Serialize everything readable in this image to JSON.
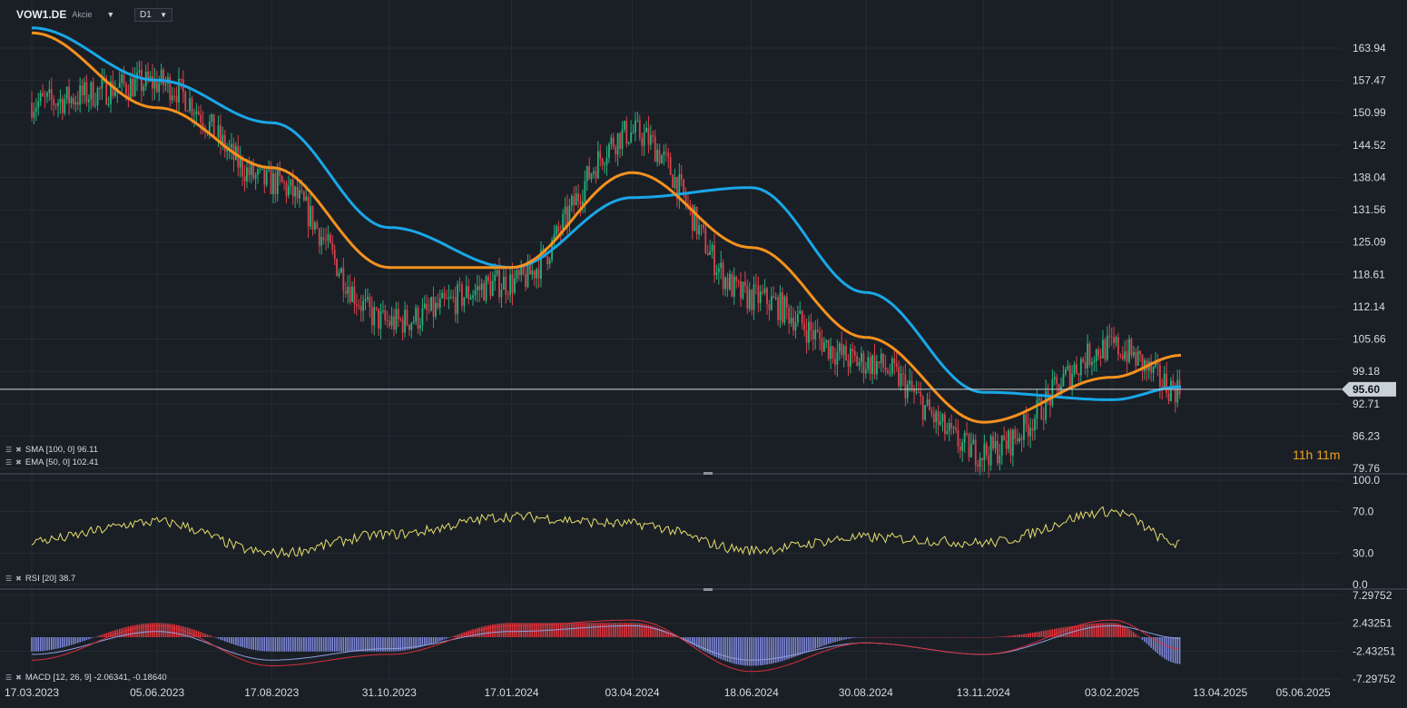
{
  "header": {
    "symbol": "VOW1.DE",
    "asset_type": "Akcie",
    "timeframe": "D1"
  },
  "indicators": {
    "sma_label": "SMA [100, 0] 96.11",
    "ema_label": "EMA [50, 0] 102.41",
    "rsi_label": "RSI [20] 38.7",
    "macd_label": "MACD [12, 26, 9] -2.06341, -0.18640"
  },
  "timer": "11h 11m",
  "colors": {
    "sma": "#19a7e8",
    "ema": "#f5911e",
    "up": "#26b07a",
    "down": "#d9424a",
    "rsi": "#e6dd6a",
    "macd_pos": "#e3363e",
    "macd_neg": "#7e87d8",
    "macd_line": "#d92e3a",
    "signal_line": "#8fa0e0"
  },
  "chart_data": {
    "type": "line",
    "x_ticks": [
      "17.03.2023",
      "05.06.2023",
      "17.08.2023",
      "31.10.2023",
      "17.01.2024",
      "03.04.2024",
      "18.06.2024",
      "30.08.2024",
      "13.11.2024",
      "03.02.2025",
      "13.04.2025",
      "05.06.2025"
    ],
    "price_axis_ticks": [
      "163.94",
      "157.47",
      "150.99",
      "144.52",
      "138.04",
      "131.56",
      "125.09",
      "118.61",
      "112.14",
      "105.66",
      "99.18",
      "92.71",
      "86.23",
      "79.76"
    ],
    "current_price": "95.60",
    "price_series": {
      "name": "VOW1.DE",
      "x": [
        "17.03.2023",
        "05.06.2023",
        "17.08.2023",
        "31.10.2023",
        "17.01.2024",
        "03.04.2024",
        "18.06.2024",
        "30.08.2024",
        "13.11.2024",
        "03.02.2025",
        "19.03.2025"
      ],
      "values": [
        153,
        157,
        137,
        109,
        117,
        147,
        114,
        101,
        83,
        104,
        95.6
      ]
    },
    "sma": {
      "x": [
        "17.03.2023",
        "05.06.2023",
        "17.08.2023",
        "31.10.2023",
        "17.01.2024",
        "03.04.2024",
        "18.06.2024",
        "30.08.2024",
        "13.11.2024",
        "03.02.2025",
        "19.03.2025"
      ],
      "values": [
        168,
        157.5,
        149,
        128,
        120,
        134,
        136,
        115,
        95,
        93.5,
        96.11
      ]
    },
    "ema": {
      "x": [
        "17.03.2023",
        "05.06.2023",
        "17.08.2023",
        "31.10.2023",
        "17.01.2024",
        "03.04.2024",
        "18.06.2024",
        "30.08.2024",
        "13.11.2024",
        "03.02.2025",
        "19.03.2025"
      ],
      "values": [
        167,
        152,
        140,
        120,
        120,
        139,
        124,
        106,
        89,
        98,
        102.41
      ]
    },
    "rsi": {
      "ylim": [
        0,
        100
      ],
      "axis_ticks": [
        "100.0",
        "70.0",
        "30.0",
        "0.0"
      ],
      "x": [
        "17.03.2023",
        "05.06.2023",
        "17.08.2023",
        "31.10.2023",
        "17.01.2024",
        "03.04.2024",
        "18.06.2024",
        "30.08.2024",
        "13.11.2024",
        "03.02.2025",
        "19.03.2025"
      ],
      "values": [
        42,
        60,
        30,
        48,
        65,
        58,
        33,
        45,
        40,
        70,
        38.7
      ]
    },
    "macd": {
      "axis_ticks": [
        "7.29752",
        "2.43251",
        "-2.43251",
        "-7.29752"
      ],
      "x": [
        "17.03.2023",
        "05.06.2023",
        "17.08.2023",
        "31.10.2023",
        "17.01.2024",
        "03.04.2024",
        "18.06.2024",
        "30.08.2024",
        "13.11.2024",
        "03.02.2025",
        "19.03.2025"
      ],
      "macd": [
        -4,
        2,
        -5,
        -3,
        2,
        3,
        -6,
        -1,
        -3,
        3,
        -2.06341
      ],
      "signal": [
        -3,
        1,
        -4,
        -2,
        1,
        2,
        -4,
        -1,
        -3,
        2,
        -0.1864
      ]
    }
  }
}
